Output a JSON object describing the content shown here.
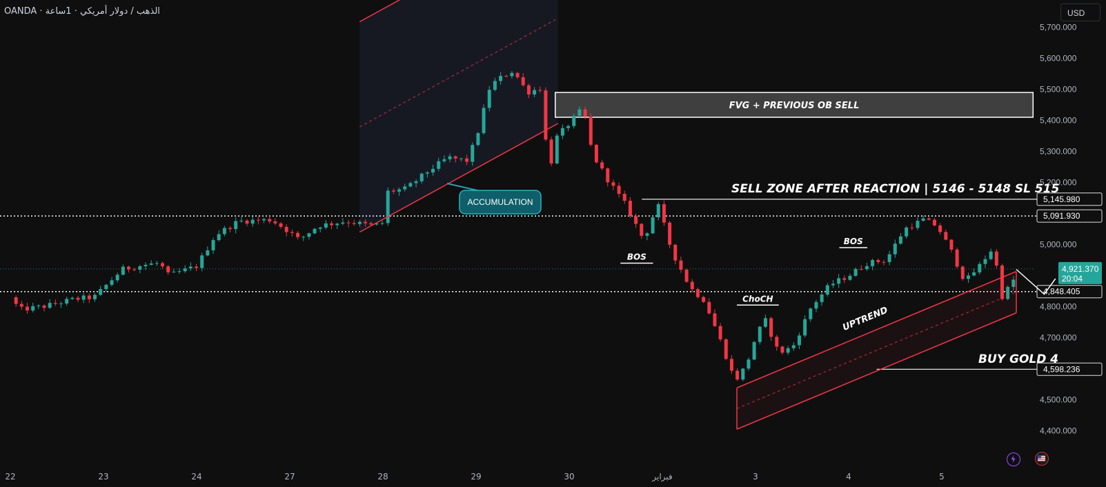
{
  "header": {
    "symbol_title": "OANDA · الذهب / دولار أمريكي · 1ساعة"
  },
  "currency": "USD",
  "colors": {
    "up": "#26a69a",
    "down": "#f23645",
    "channel": "#f23645",
    "text": "#d1d4dc",
    "bg": "#0f0f0f"
  },
  "chart_data": {
    "type": "candlestick",
    "y_ticks": [
      4400,
      4500,
      4600,
      4700,
      4800,
      4900,
      5000,
      5100,
      5200,
      5300,
      5400,
      5500,
      5600,
      5700
    ],
    "y_tick_labels": [
      "4,400.000",
      "4,500.000",
      "",
      "4,700.000",
      "4,800.000",
      "",
      "5,000.000",
      "",
      "5,200.000",
      "5,300.000",
      "5,400.000",
      "5,500.000",
      "5,600.000",
      "5,700.000"
    ],
    "x_ticks": [
      {
        "label": "22",
        "session": 0
      },
      {
        "label": "23",
        "session": 1
      },
      {
        "label": "24",
        "session": 2
      },
      {
        "label": "27",
        "session": 3
      },
      {
        "label": "28",
        "session": 4
      },
      {
        "label": "29",
        "session": 5
      },
      {
        "label": "30",
        "session": 6
      },
      {
        "label": "فبراير",
        "session": 7
      },
      {
        "label": "3",
        "session": 8
      },
      {
        "label": "4",
        "session": 9
      },
      {
        "label": "5",
        "session": 10
      }
    ],
    "price_levels": [
      {
        "value": 5145.98,
        "label": "5,145.980",
        "style": "solid"
      },
      {
        "value": 5091.93,
        "label": "5,091.930",
        "style": "dotted"
      },
      {
        "value": 4848.405,
        "label": "4,848.405",
        "style": "dotted"
      },
      {
        "value": 4598.236,
        "label": "4,598.236",
        "style": "solid"
      }
    ],
    "last_price": {
      "value": 4921.37,
      "label": "4,921.370",
      "countdown": "20:04"
    },
    "anchors": [
      {
        "s": 0.0,
        "p": 4830
      },
      {
        "s": 0.1,
        "p": 4790
      },
      {
        "s": 0.35,
        "p": 4800
      },
      {
        "s": 0.7,
        "p": 4825
      },
      {
        "s": 0.9,
        "p": 4830
      },
      {
        "s": 1.2,
        "p": 4920
      },
      {
        "s": 1.45,
        "p": 4935
      },
      {
        "s": 1.6,
        "p": 4940
      },
      {
        "s": 1.7,
        "p": 4900
      },
      {
        "s": 2.0,
        "p": 4930
      },
      {
        "s": 2.2,
        "p": 5030
      },
      {
        "s": 2.45,
        "p": 5075
      },
      {
        "s": 2.8,
        "p": 5080
      },
      {
        "s": 3.0,
        "p": 5040
      },
      {
        "s": 3.1,
        "p": 5015
      },
      {
        "s": 3.3,
        "p": 5060
      },
      {
        "s": 3.6,
        "p": 5075
      },
      {
        "s": 3.9,
        "p": 5060
      },
      {
        "s": 4.0,
        "p": 5070
      },
      {
        "s": 4.05,
        "p": 5170
      },
      {
        "s": 4.25,
        "p": 5180
      },
      {
        "s": 4.5,
        "p": 5240
      },
      {
        "s": 4.7,
        "p": 5280
      },
      {
        "s": 4.9,
        "p": 5270
      },
      {
        "s": 5.0,
        "p": 5340
      },
      {
        "s": 5.15,
        "p": 5510
      },
      {
        "s": 5.25,
        "p": 5535
      },
      {
        "s": 5.4,
        "p": 5560
      },
      {
        "s": 5.55,
        "p": 5490
      },
      {
        "s": 5.7,
        "p": 5505
      },
      {
        "s": 5.78,
        "p": 5220
      },
      {
        "s": 5.85,
        "p": 5340
      },
      {
        "s": 6.0,
        "p": 5390
      },
      {
        "s": 6.15,
        "p": 5440
      },
      {
        "s": 6.25,
        "p": 5290
      },
      {
        "s": 6.4,
        "p": 5215
      },
      {
        "s": 6.6,
        "p": 5130
      },
      {
        "s": 6.8,
        "p": 5015
      },
      {
        "s": 6.95,
        "p": 5130
      },
      {
        "s": 7.1,
        "p": 4980
      },
      {
        "s": 7.3,
        "p": 4860
      },
      {
        "s": 7.45,
        "p": 4820
      },
      {
        "s": 7.6,
        "p": 4710
      },
      {
        "s": 7.78,
        "p": 4560
      },
      {
        "s": 7.9,
        "p": 4610
      },
      {
        "s": 8.0,
        "p": 4700
      },
      {
        "s": 8.1,
        "p": 4760
      },
      {
        "s": 8.25,
        "p": 4650
      },
      {
        "s": 8.4,
        "p": 4670
      },
      {
        "s": 8.6,
        "p": 4800
      },
      {
        "s": 8.8,
        "p": 4870
      },
      {
        "s": 9.0,
        "p": 4900
      },
      {
        "s": 9.2,
        "p": 4940
      },
      {
        "s": 9.4,
        "p": 4950
      },
      {
        "s": 9.6,
        "p": 5050
      },
      {
        "s": 9.8,
        "p": 5080
      },
      {
        "s": 9.95,
        "p": 5060
      },
      {
        "s": 10.1,
        "p": 4980
      },
      {
        "s": 10.25,
        "p": 4880
      },
      {
        "s": 10.4,
        "p": 4930
      },
      {
        "s": 10.55,
        "p": 4990
      },
      {
        "s": 10.65,
        "p": 4830
      },
      {
        "s": 10.8,
        "p": 4900
      },
      {
        "s": 11.0,
        "p": 4921
      }
    ],
    "accumulation_channel": {
      "start": {
        "s": 3.75,
        "p": 5040
      },
      "end": {
        "s": 5.88,
        "p": 5390
      },
      "width": 305
    },
    "uptrend_channel": {
      "start": {
        "s": 7.8,
        "p": 4405
      },
      "end": {
        "s": 10.8,
        "p": 4780
      },
      "width": 60
    },
    "projection": [
      {
        "s": 10.8,
        "p": 4920
      },
      {
        "s": 11.1,
        "p": 4840
      },
      {
        "s": 11.22,
        "p": 4890
      }
    ],
    "fvg_zone": {
      "s_start": 5.85,
      "s_end": 10.98,
      "p_top": 5490,
      "p_bottom": 5410,
      "label": "FVG + PREVIOUS OB SELL"
    },
    "structure_marks": [
      {
        "label": "BOS",
        "s1": 6.55,
        "s2": 6.9,
        "p": 4940
      },
      {
        "label": "BOS",
        "s1": 8.9,
        "s2": 9.2,
        "p": 4990
      },
      {
        "label": "ChoCH",
        "s1": 7.8,
        "s2": 8.25,
        "p": 4805
      }
    ],
    "sell_label": "SELL ZONE AFTER REACTION | 5146 - 5148 SL 515",
    "sell_level_line": {
      "s_start": 6.78,
      "s_end": 10.98
    },
    "buy_label": "BUY GOLD 4",
    "buy_level_line": {
      "s_start": 9.3,
      "s_end": 10.98
    },
    "accumulation_label": "ACCUMULATION",
    "uptrend_label": "UPTREND"
  }
}
